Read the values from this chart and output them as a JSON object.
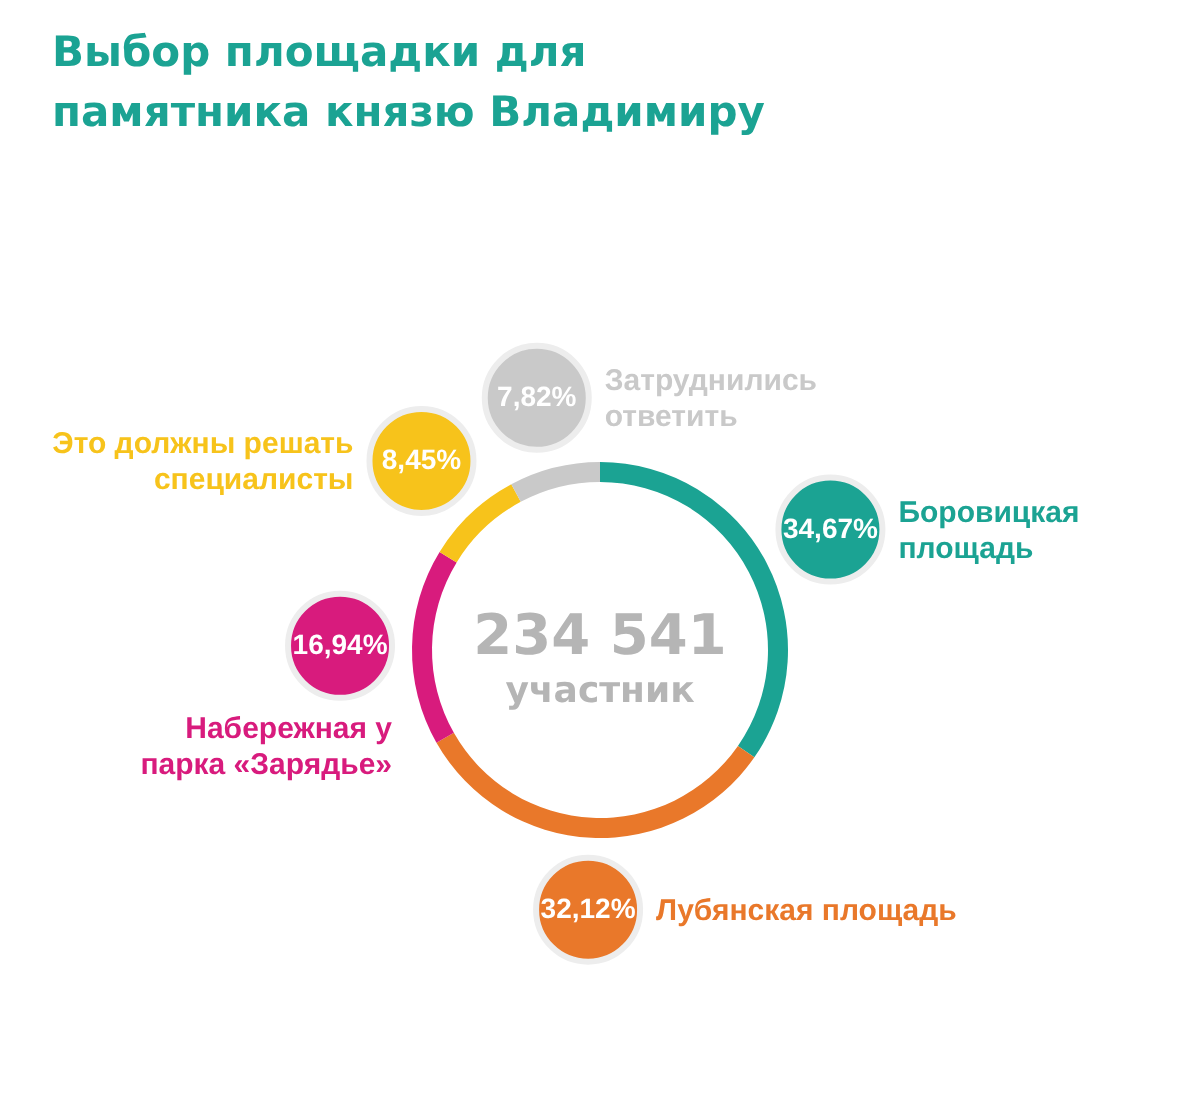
{
  "chart_data": {
    "type": "donut",
    "title": "Выбор площадки для памятника князю Владимиру",
    "categories": [
      "Боровицкая площадь",
      "Лубянская площадь",
      "Набережная у парка «Зарядье»",
      "Это должны решать специалисты",
      "Затруднились ответить"
    ],
    "values": [
      34.67,
      32.12,
      16.94,
      8.45,
      7.82
    ],
    "colors": [
      "#1ba393",
      "#e9782a",
      "#d81b7d",
      "#f7c31b",
      "#c9c9c9"
    ],
    "value_labels": [
      "34,67%",
      "32,12%",
      "16,94%",
      "8,45%",
      "7,82%"
    ],
    "annotations": [
      "234 541",
      "участник"
    ]
  }
}
